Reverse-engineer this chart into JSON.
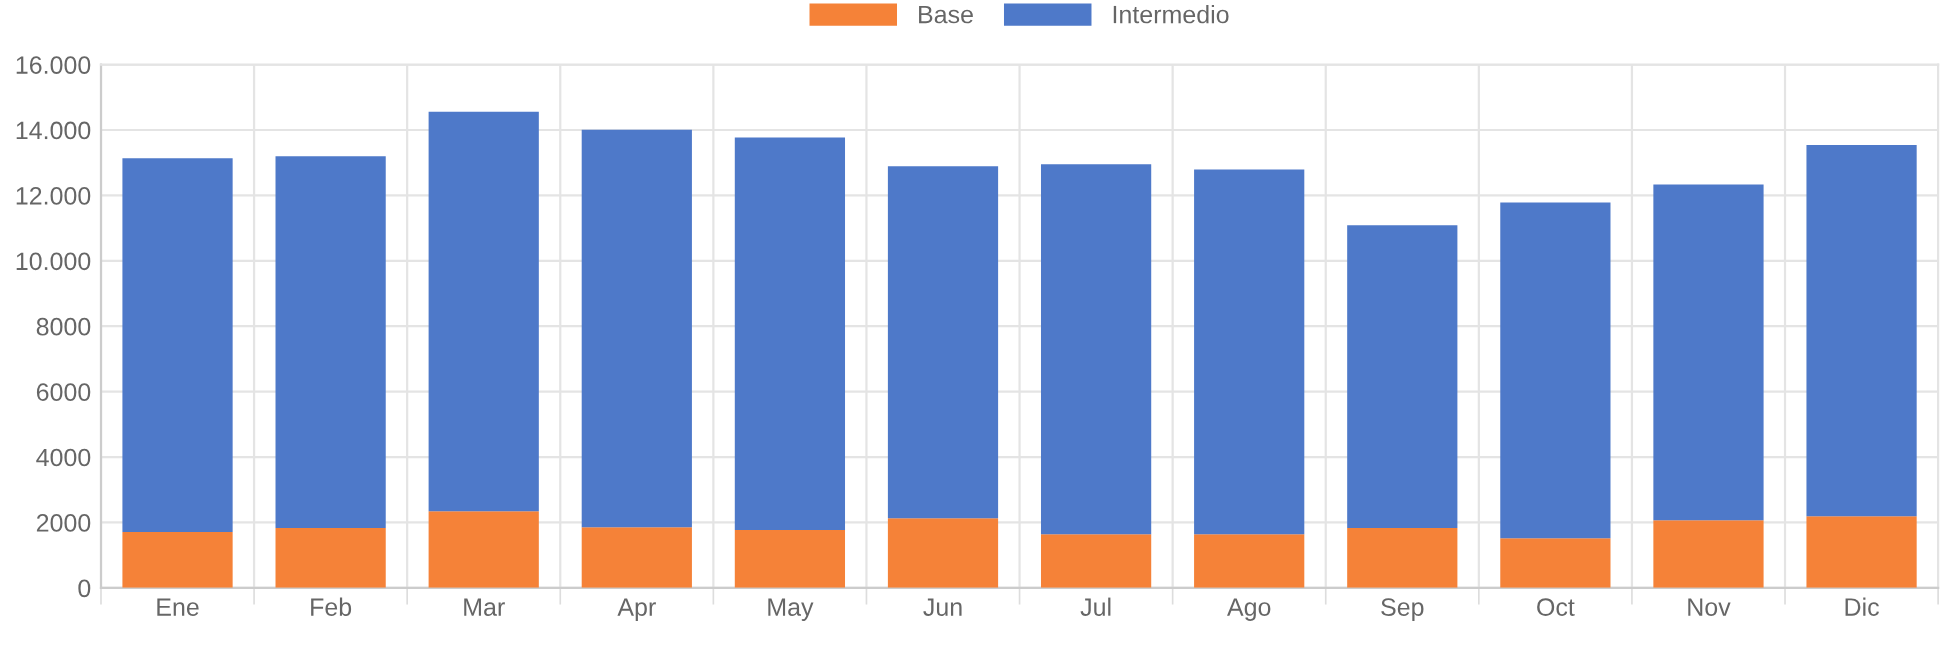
{
  "chart_data": {
    "type": "bar",
    "stacked": true,
    "legend": "top",
    "grid": true,
    "categories": [
      "Ene",
      "Feb",
      "Mar",
      "Apr",
      "May",
      "Jun",
      "Jul",
      "Ago",
      "Sep",
      "Oct",
      "Nov",
      "Dic"
    ],
    "series": [
      {
        "name": "Base",
        "color": "#f58238",
        "values": [
          1710,
          1830,
          2340,
          1850,
          1770,
          2130,
          1640,
          1640,
          1830,
          1520,
          2070,
          2190
        ]
      },
      {
        "name": "Intermedio",
        "color": "#4e79c9",
        "values": [
          11430,
          11370,
          12220,
          12160,
          12000,
          10760,
          11310,
          11150,
          9260,
          10260,
          10260,
          11350
        ]
      }
    ],
    "ylim": [
      0,
      16000
    ],
    "yticks": [
      0,
      2000,
      4000,
      6000,
      8000,
      {
        "value": 10000,
        "label": "10.000"
      },
      {
        "value": 12000,
        "label": "12.000"
      },
      {
        "value": 14000,
        "label": "14.000"
      },
      {
        "value": 16000,
        "label": "16.000"
      }
    ]
  }
}
